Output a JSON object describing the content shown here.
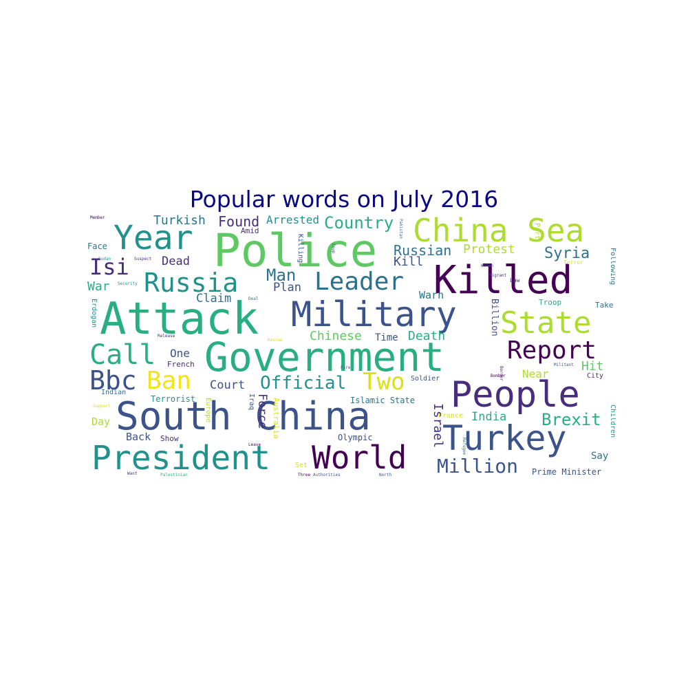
{
  "title": "Popular words on July 2016",
  "colors": {
    "title": "#0a0a80",
    "c1": "#440154",
    "c2": "#472d7b",
    "c3": "#3b528b",
    "c4": "#2c728e",
    "c5": "#21918c",
    "c6": "#28ae80",
    "c7": "#5ec962",
    "c8": "#addc30",
    "c9": "#d7e219",
    "c10": "#efe51c"
  },
  "words": {
    "police": "Police",
    "attack": "Attack",
    "government": "Government",
    "south_china": "South China",
    "killed": "Killed",
    "military": "Military",
    "president": "President",
    "people": "People",
    "china_sea": "China Sea",
    "turkey": "Turkey",
    "world": "World",
    "year": "Year",
    "state": "State",
    "russia": "Russia",
    "leader": "Leader",
    "report": "Report",
    "call": "Call",
    "bbc": "Bbc",
    "ban": "Ban",
    "two": "Two",
    "isi": "Isi",
    "million": "Million",
    "official": "Official",
    "man": "Man",
    "country": "Country",
    "brexit": "Brexit",
    "russian": "Russian",
    "protest": "Protest",
    "syria": "Syria",
    "turkish": "Turkish",
    "found": "Found",
    "arrested": "Arrested",
    "dead": "Dead",
    "kill": "Kill",
    "war": "War",
    "claim": "Claim",
    "plan": "Plan",
    "warn": "Warn",
    "chinese": "Chinese",
    "time": "Time",
    "death": "Death",
    "one": "One",
    "french": "French",
    "court": "Court",
    "hit": "Hit",
    "near": "Near",
    "india": "India",
    "israel": "Israel",
    "force": "Force",
    "back": "Back",
    "show": "Show",
    "day": "Day",
    "terrorist": "Terrorist",
    "indian": "Indian",
    "iraq": "Iraq",
    "australia": "Australia",
    "islamic_state": "Islamic State",
    "soldier": "Soldier",
    "olympic": "Olympic",
    "france": "France",
    "say": "Say",
    "prime_minister": "Prime Minister",
    "city": "City",
    "billion": "Billion",
    "troop": "Troop",
    "take": "Take",
    "law": "Law",
    "part": "Part",
    "terror": "Terror",
    "following": "Following",
    "face": "Face",
    "amid": "Amid",
    "killing": "Killing",
    "erdogan": "Erdogan",
    "children": "Children",
    "europe": "Europe",
    "set": "Set",
    "border": "Border",
    "militant": "Militant",
    "migrant": "Migrant",
    "women": "Women",
    "support": "Support",
    "palestinian": "Palestinian",
    "authorities": "Authorities",
    "north": "North",
    "three": "Three",
    "want": "Want",
    "leave": "Leave",
    "fire": "Fire",
    "suspect": "Suspect",
    "security": "Security",
    "sudan": "Sudan",
    "deal": "Deal",
    "pakistan": "Pakistan",
    "coup": "Coup",
    "member": "Member",
    "bomber": "Bomber",
    "release": "Release",
    "rescue": "Rescue",
    "refugee": "Refugee"
  }
}
